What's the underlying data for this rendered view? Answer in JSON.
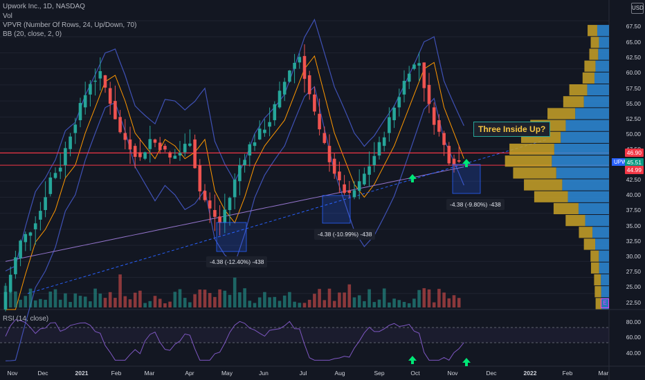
{
  "header": {
    "symbol_line": "Upwork Inc., 1D, NASDAQ",
    "volume_label": "Vol",
    "vpvr_label": "VPVR (Number Of Rows, 24, Up/Down, 70)",
    "bb_label": "BB (20, close, 2, 0)",
    "currency": "USD"
  },
  "rsi_label": "RSI (14, close)",
  "price_axis": [
    "67.50",
    "65.00",
    "62.50",
    "60.00",
    "57.50",
    "55.00",
    "52.50",
    "50.00",
    "47.50",
    "42.50",
    "40.00",
    "37.50",
    "35.00",
    "32.50",
    "30.00",
    "27.50",
    "25.00",
    "22.50"
  ],
  "rsi_axis": [
    "80.00",
    "60.00",
    "40.00"
  ],
  "time_axis": [
    "Nov",
    "Dec",
    "2021",
    "Feb",
    "Mar",
    "Apr",
    "May",
    "Jun",
    "Jul",
    "Aug",
    "Sep",
    "Oct",
    "Nov",
    "Dec",
    "2022",
    "Feb",
    "Mar"
  ],
  "price_tags": {
    "upper": "46.90",
    "symbol": "UPWK",
    "mid": "45.51",
    "lower": "44.99"
  },
  "measurements": [
    "-4.38 (-12.40%) -438",
    "-4.38 (-10.99%) -438",
    "-4.38 (-9.80%) -438"
  ],
  "callout": "Three Inside Up?",
  "earnings_badge": "E",
  "colors": {
    "up": "#26a69a",
    "down": "#ef5350",
    "bb": "#3f51b5",
    "basis": "#ff9800",
    "vpvr_up": "#2e8bd8",
    "vpvr_down": "#c9a227",
    "rsi": "#7e57c2",
    "arrow": "#00e676"
  },
  "chart_data": {
    "type": "candlestick",
    "price_axis_range": [
      22.5,
      67.5
    ],
    "key_levels": [
      46.9,
      45.51,
      44.99
    ],
    "close_path": [
      [
        0,
        22.5
      ],
      [
        2,
        28
      ],
      [
        4,
        33
      ],
      [
        6,
        35
      ],
      [
        8,
        38
      ],
      [
        10,
        43
      ],
      [
        12,
        45
      ],
      [
        14,
        50
      ],
      [
        16,
        54
      ],
      [
        18,
        58
      ],
      [
        20,
        59
      ],
      [
        22,
        55
      ],
      [
        24,
        50
      ],
      [
        26,
        48
      ],
      [
        28,
        46
      ],
      [
        30,
        49
      ],
      [
        32,
        48
      ],
      [
        34,
        46
      ],
      [
        36,
        47
      ],
      [
        38,
        49
      ],
      [
        40,
        41
      ],
      [
        42,
        38
      ],
      [
        44,
        36
      ],
      [
        46,
        40
      ],
      [
        48,
        45
      ],
      [
        50,
        48
      ],
      [
        52,
        50
      ],
      [
        54,
        52
      ],
      [
        56,
        56
      ],
      [
        58,
        60
      ],
      [
        60,
        62
      ],
      [
        62,
        56
      ],
      [
        64,
        50
      ],
      [
        66,
        46
      ],
      [
        68,
        42
      ],
      [
        70,
        40
      ],
      [
        72,
        42
      ],
      [
        74,
        45
      ],
      [
        76,
        48
      ],
      [
        78,
        52
      ],
      [
        80,
        56
      ],
      [
        82,
        60
      ],
      [
        84,
        61
      ],
      [
        86,
        54
      ],
      [
        88,
        50
      ],
      [
        90,
        46
      ],
      [
        92,
        45.5
      ]
    ]
  }
}
